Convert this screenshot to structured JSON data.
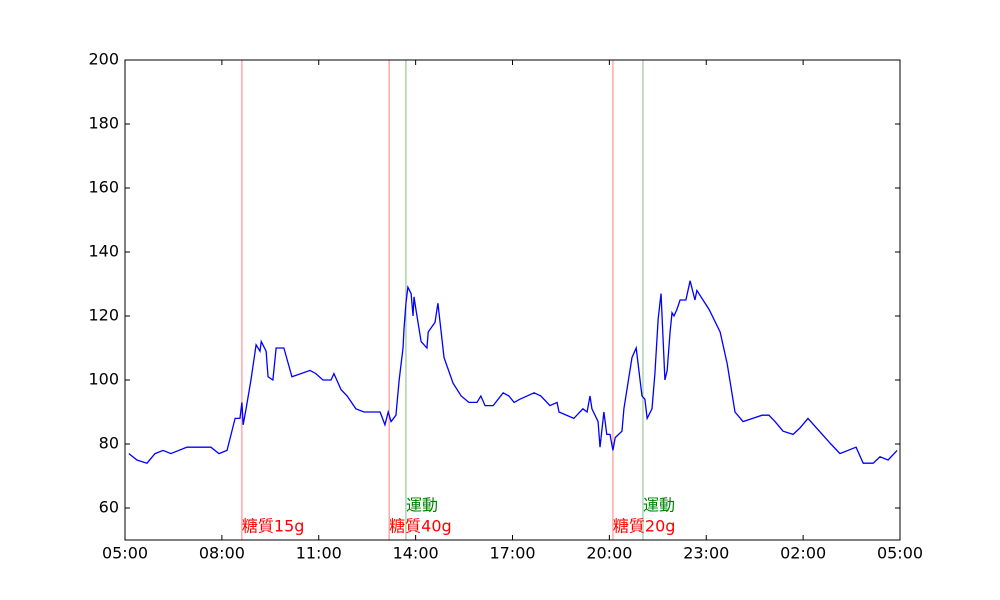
{
  "chart_data": {
    "type": "line",
    "x": [
      5.12,
      5.37,
      5.68,
      5.93,
      6.18,
      6.42,
      6.92,
      7.66,
      7.91,
      8.16,
      8.41,
      8.56,
      8.62,
      8.66,
      8.75,
      8.9,
      9.06,
      9.18,
      9.22,
      9.37,
      9.43,
      9.58,
      9.68,
      9.92,
      10.17,
      10.73,
      10.91,
      11.13,
      11.38,
      11.47,
      11.69,
      11.88,
      12.15,
      12.4,
      12.9,
      13.05,
      13.15,
      13.24,
      13.39,
      13.49,
      13.61,
      13.64,
      13.7,
      13.76,
      13.86,
      13.92,
      13.95,
      14.01,
      14.17,
      14.35,
      14.39,
      14.6,
      14.69,
      14.88,
      15.16,
      15.41,
      15.65,
      15.9,
      16.02,
      16.15,
      16.4,
      16.71,
      16.89,
      17.05,
      17.23,
      17.67,
      17.88,
      18.16,
      18.38,
      18.44,
      18.9,
      19.18,
      19.31,
      19.4,
      19.46,
      19.65,
      19.71,
      19.83,
      19.92,
      20.02,
      20.11,
      20.18,
      20.39,
      20.45,
      20.7,
      20.83,
      21.01,
      21.1,
      21.17,
      21.32,
      21.41,
      21.51,
      21.6,
      21.72,
      21.79,
      21.88,
      21.94,
      22.0,
      22.09,
      22.19,
      22.37,
      22.5,
      22.65,
      22.71,
      23.09,
      23.43,
      23.65,
      23.89,
      24.14,
      24.73,
      24.94,
      25.13,
      25.38,
      25.69,
      25.9,
      26.15,
      26.86,
      27.14,
      27.64,
      27.86,
      28.17,
      28.38,
      28.63,
      28.91
    ],
    "series": [
      {
        "color": "#0000ff",
        "values": [
          77,
          75,
          74,
          77,
          78,
          77,
          79,
          79,
          77,
          78,
          88,
          88,
          93,
          86,
          91,
          100,
          111,
          109,
          112,
          109,
          101,
          100,
          110,
          110,
          101,
          103,
          102,
          100,
          100,
          102,
          97,
          95,
          91,
          90,
          90,
          86,
          90,
          87,
          89,
          100,
          110,
          116,
          124,
          129,
          127,
          120,
          126,
          122,
          112,
          110,
          115,
          118,
          124,
          107,
          99,
          95,
          93,
          93,
          95,
          92,
          92,
          96,
          95,
          93,
          94,
          96,
          95,
          92,
          93,
          90,
          88,
          91,
          90,
          95,
          91,
          87,
          79,
          90,
          83,
          83,
          78,
          82,
          84,
          91,
          107,
          110,
          95,
          94,
          88,
          91,
          102,
          119,
          127,
          100,
          103,
          115,
          121,
          120,
          122,
          125,
          125,
          131,
          125,
          128,
          122,
          115,
          105,
          90,
          87,
          89,
          89,
          87,
          84,
          83,
          85,
          88,
          80,
          77,
          79,
          74,
          74,
          76,
          75,
          78
        ]
      }
    ],
    "annotations": [
      {
        "x": 8.62,
        "label": "糖質15g",
        "color": "#ff0000"
      },
      {
        "x": 13.18,
        "label": "糖質40g",
        "color": "#ff0000"
      },
      {
        "x": 13.7,
        "label": "運動",
        "color": "#008000"
      },
      {
        "x": 20.11,
        "label": "糖質20g",
        "color": "#ff0000"
      },
      {
        "x": 21.04,
        "label": "運動",
        "color": "#008000"
      }
    ],
    "xlim": [
      5,
      29
    ],
    "xticks": [
      {
        "value": 5,
        "label": "05:00"
      },
      {
        "value": 8,
        "label": "08:00"
      },
      {
        "value": 11,
        "label": "11:00"
      },
      {
        "value": 14,
        "label": "14:00"
      },
      {
        "value": 17,
        "label": "17:00"
      },
      {
        "value": 20,
        "label": "20:00"
      },
      {
        "value": 23,
        "label": "23:00"
      },
      {
        "value": 26,
        "label": "02:00"
      },
      {
        "value": 29,
        "label": "05:00"
      }
    ],
    "ylim": [
      50,
      200
    ],
    "yticks": [
      60,
      80,
      100,
      120,
      140,
      160,
      180,
      200
    ],
    "grid": false
  }
}
